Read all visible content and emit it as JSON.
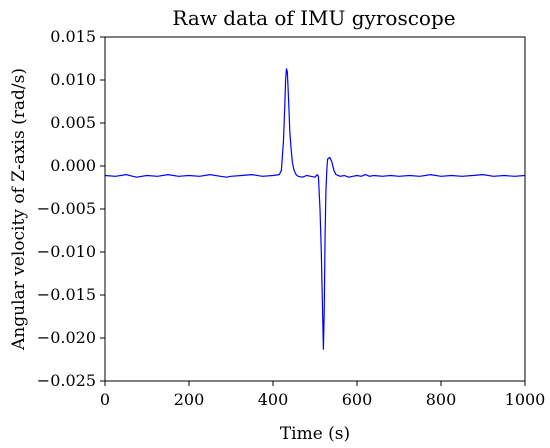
{
  "chart_data": {
    "type": "line",
    "title": "Raw data of IMU gyroscope",
    "xlabel": "Time (s)",
    "ylabel": "Angular velocity of Z-axis (rad/s)",
    "xlim": [
      0,
      1000
    ],
    "ylim": [
      -0.025,
      0.015
    ],
    "xticks": [
      0,
      200,
      400,
      600,
      800,
      1000
    ],
    "xtick_labels": [
      "0",
      "200",
      "400",
      "600",
      "800",
      "1000"
    ],
    "yticks": [
      0.015,
      0.01,
      0.005,
      0.0,
      -0.005,
      -0.01,
      -0.015,
      -0.02,
      -0.025
    ],
    "ytick_labels": [
      "0.015",
      "0.010",
      "0.005",
      "0.000",
      "−0.005",
      "−0.010",
      "−0.015",
      "−0.020",
      "−0.025"
    ],
    "grid": false,
    "series": [
      {
        "color": "#0000ff",
        "x": [
          0,
          25,
          50,
          75,
          100,
          125,
          150,
          175,
          200,
          225,
          250,
          275,
          290,
          300,
          325,
          350,
          375,
          400,
          415,
          420,
          425,
          428,
          430,
          432,
          434,
          436,
          438,
          440,
          443,
          446,
          450,
          455,
          460,
          470,
          480,
          490,
          500,
          505,
          508,
          512,
          515,
          518,
          520,
          522,
          524,
          526,
          528,
          530,
          535,
          540,
          545,
          550,
          560,
          570,
          580,
          590,
          600,
          610,
          620,
          630,
          640,
          660,
          680,
          700,
          725,
          750,
          775,
          800,
          825,
          850,
          875,
          900,
          925,
          950,
          975,
          1000
        ],
        "y": [
          -0.0011,
          -0.0012,
          -0.001,
          -0.0013,
          -0.0011,
          -0.0012,
          -0.001,
          -0.0012,
          -0.0011,
          -0.0012,
          -0.001,
          -0.0012,
          -0.0013,
          -0.0012,
          -0.0011,
          -0.001,
          -0.0012,
          -0.0011,
          -0.001,
          -0.0005,
          0.003,
          0.007,
          0.01,
          0.0113,
          0.011,
          0.009,
          0.0065,
          0.004,
          0.002,
          0.0005,
          -0.0005,
          -0.001,
          -0.0012,
          -0.0013,
          -0.0011,
          -0.0012,
          -0.0013,
          -0.001,
          -0.0012,
          -0.005,
          -0.01,
          -0.017,
          -0.0213,
          -0.017,
          -0.008,
          -0.003,
          -0.0005,
          0.0008,
          0.001,
          0.0005,
          -0.0005,
          -0.001,
          -0.0012,
          -0.0011,
          -0.0013,
          -0.0012,
          -0.0011,
          -0.0012,
          -0.001,
          -0.0012,
          -0.0011,
          -0.0012,
          -0.0011,
          -0.0012,
          -0.0011,
          -0.0012,
          -0.001,
          -0.0012,
          -0.0011,
          -0.0012,
          -0.0011,
          -0.001,
          -0.0012,
          -0.0011,
          -0.0012,
          -0.0011
        ]
      }
    ]
  }
}
